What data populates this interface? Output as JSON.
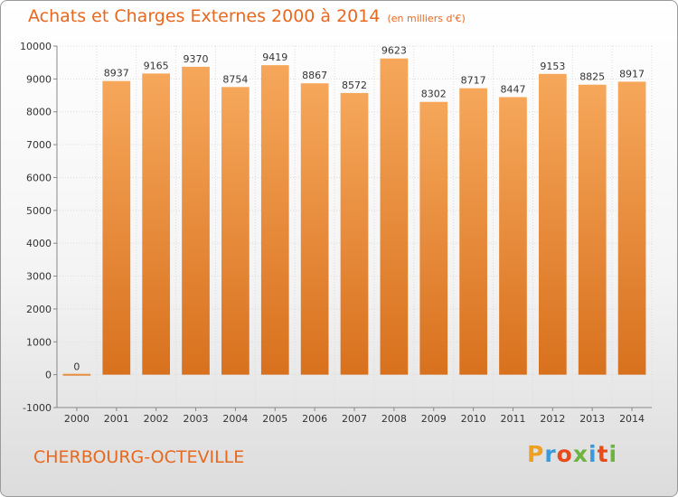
{
  "chart_data": {
    "type": "bar",
    "title": "Achats et Charges Externes 2000 à 2014",
    "subtitle": "(en milliers d'€)",
    "categories": [
      "2000",
      "2001",
      "2002",
      "2003",
      "2004",
      "2005",
      "2006",
      "2007",
      "2008",
      "2009",
      "2010",
      "2011",
      "2012",
      "2013",
      "2014"
    ],
    "values": [
      0,
      8937,
      9165,
      9370,
      8754,
      9419,
      8867,
      8572,
      9623,
      8302,
      8717,
      8447,
      9153,
      8825,
      8917
    ],
    "ylim": [
      -1000,
      10000
    ],
    "yticks": [
      "-1000",
      "0",
      "1000",
      "2000",
      "3000",
      "4000",
      "5000",
      "6000",
      "7000",
      "8000",
      "9000",
      "10000"
    ],
    "xlabel": "",
    "ylabel": "",
    "grid": true,
    "bar_color": "#e8852e"
  },
  "footer": {
    "city": "CHERBOURG-OCTEVILLE",
    "logo_letters": [
      "P",
      "r",
      "o",
      "x",
      "i",
      "t",
      "i"
    ],
    "logo_colors": [
      "#f0a020",
      "#3a9ad9",
      "#e84a1a",
      "#6cb33f",
      "#3a9ad9",
      "#e84a1a",
      "#6cb33f"
    ]
  }
}
